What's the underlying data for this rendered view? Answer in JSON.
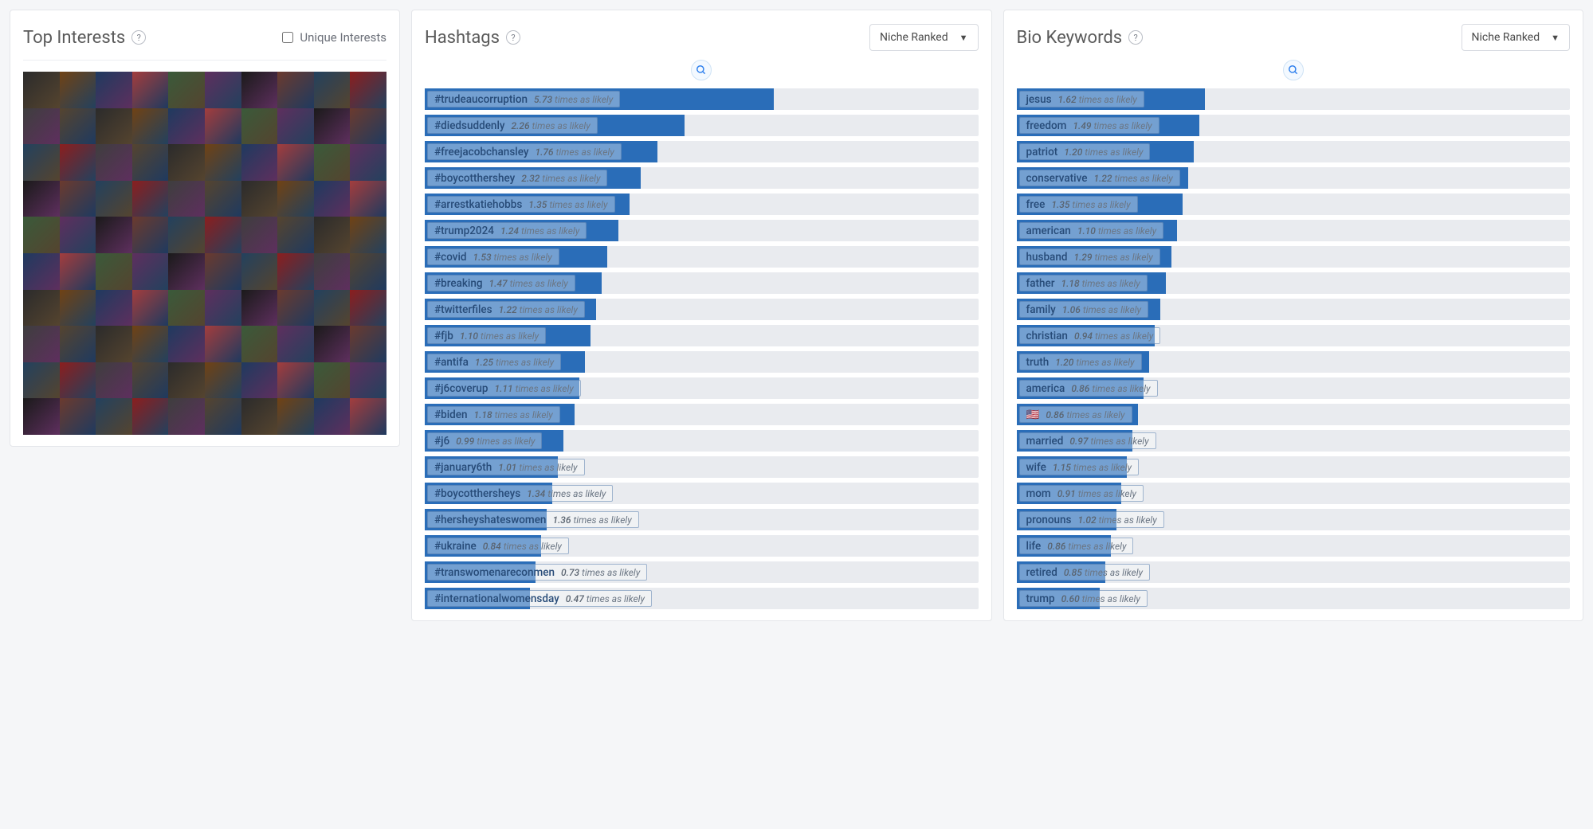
{
  "colors": {
    "page_bg": "#f5f6f8",
    "panel_bg": "#ffffff",
    "panel_border": "#e4e6ea",
    "title": "#5a5a5a",
    "bar_fill": "#2a6db8",
    "bar_track": "#e9ebef",
    "term_text": "#274b78",
    "muted_text": "#6b7684",
    "search_accent": "#2f80ed"
  },
  "interests_panel": {
    "title": "Top Interests",
    "help": "?",
    "checkbox_label": "Unique Interests",
    "checkbox_checked": false,
    "grid_cols": 10,
    "grid_rows": 10,
    "avatars_count": 100
  },
  "hashtags_panel": {
    "title": "Hashtags",
    "help": "?",
    "dropdown_label": "Niche Ranked",
    "likely_suffix": "times as likely",
    "max_fill_percent": 63,
    "items": [
      {
        "term": "#trudeaucorruption",
        "value": 5.73,
        "fill": 63
      },
      {
        "term": "#diedsuddenly",
        "value": 2.26,
        "fill": 47
      },
      {
        "term": "#freejacobchansley",
        "value": 1.76,
        "fill": 42
      },
      {
        "term": "#boycotthershey",
        "value": 2.32,
        "fill": 39
      },
      {
        "term": "#arrestkatiehobbs",
        "value": 1.35,
        "fill": 37
      },
      {
        "term": "#trump2024",
        "value": 1.24,
        "fill": 35
      },
      {
        "term": "#covid",
        "value": 1.53,
        "fill": 33
      },
      {
        "term": "#breaking",
        "value": 1.47,
        "fill": 32
      },
      {
        "term": "#twitterfiles",
        "value": 1.22,
        "fill": 31
      },
      {
        "term": "#fjb",
        "value": 1.1,
        "fill": 30
      },
      {
        "term": "#antifa",
        "value": 1.25,
        "fill": 29
      },
      {
        "term": "#j6coverup",
        "value": 1.11,
        "fill": 28
      },
      {
        "term": "#biden",
        "value": 1.18,
        "fill": 27
      },
      {
        "term": "#j6",
        "value": 0.99,
        "fill": 25
      },
      {
        "term": "#january6th",
        "value": 1.01,
        "fill": 24
      },
      {
        "term": "#boycotthersheys",
        "value": 1.34,
        "fill": 23
      },
      {
        "term": "#hersheyshateswomen",
        "value": 1.36,
        "fill": 22
      },
      {
        "term": "#ukraine",
        "value": 0.84,
        "fill": 21
      },
      {
        "term": "#transwomenareconmen",
        "value": 0.73,
        "fill": 20
      },
      {
        "term": "#internationalwomensday",
        "value": 0.47,
        "fill": 19
      }
    ]
  },
  "biokeywords_panel": {
    "title": "Bio Keywords",
    "help": "?",
    "dropdown_label": "Niche Ranked",
    "likely_suffix": "times as likely",
    "items": [
      {
        "term": "jesus",
        "value": 1.62,
        "fill": 34
      },
      {
        "term": "freedom",
        "value": 1.49,
        "fill": 33
      },
      {
        "term": "patriot",
        "value": 1.2,
        "fill": 32
      },
      {
        "term": "conservative",
        "value": 1.22,
        "fill": 31
      },
      {
        "term": "free",
        "value": 1.35,
        "fill": 30
      },
      {
        "term": "american",
        "value": 1.1,
        "fill": 29
      },
      {
        "term": "husband",
        "value": 1.29,
        "fill": 28
      },
      {
        "term": "father",
        "value": 1.18,
        "fill": 27
      },
      {
        "term": "family",
        "value": 1.06,
        "fill": 26
      },
      {
        "term": "christian",
        "value": 0.94,
        "fill": 25
      },
      {
        "term": "truth",
        "value": 1.2,
        "fill": 24
      },
      {
        "term": "america",
        "value": 0.86,
        "fill": 23
      },
      {
        "term": "🇺🇸",
        "value": 0.86,
        "fill": 22
      },
      {
        "term": "married",
        "value": 0.97,
        "fill": 21
      },
      {
        "term": "wife",
        "value": 1.15,
        "fill": 20
      },
      {
        "term": "mom",
        "value": 0.91,
        "fill": 19
      },
      {
        "term": "pronouns",
        "value": 1.02,
        "fill": 18
      },
      {
        "term": "life",
        "value": 0.86,
        "fill": 17
      },
      {
        "term": "retired",
        "value": 0.85,
        "fill": 16
      },
      {
        "term": "trump",
        "value": 0.6,
        "fill": 15
      }
    ]
  }
}
